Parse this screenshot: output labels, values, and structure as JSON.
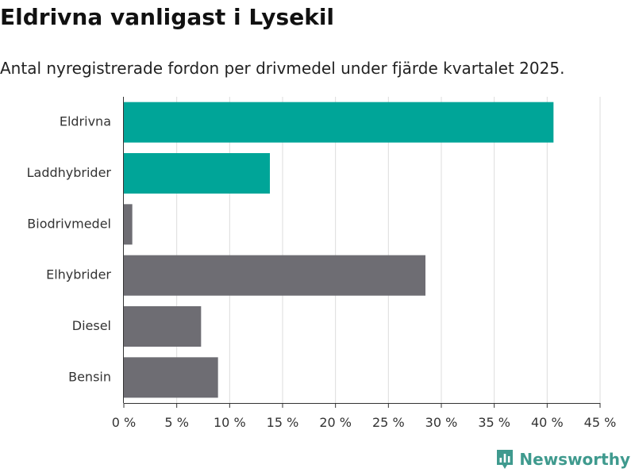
{
  "title": "Eldrivna vanligast i Lysekil",
  "subtitle": "Antal nyregistrerade fordon per drivmedel under fjärde kvartalet 2025.",
  "brand": {
    "name": "Newsworthy",
    "color": "#3f9a8e",
    "icon": "bar-chart-badge-icon"
  },
  "colors": {
    "highlight": "#00a598",
    "default": "#6e6d73",
    "grid": "#dcdcdc",
    "axis": "#333333"
  },
  "chart_data": {
    "type": "bar",
    "orientation": "horizontal",
    "categories": [
      "Eldrivna",
      "Laddhybrider",
      "Biodrivmedel",
      "Elhybrider",
      "Diesel",
      "Bensin"
    ],
    "values": [
      40.6,
      13.8,
      0.8,
      28.5,
      7.3,
      8.9
    ],
    "highlighted": [
      true,
      true,
      false,
      false,
      false,
      false
    ],
    "xlim": [
      0,
      45
    ],
    "xticks": [
      0,
      5,
      10,
      15,
      20,
      25,
      30,
      35,
      40,
      45
    ],
    "tick_labels": [
      "0 %",
      "5 %",
      "10 %",
      "15 %",
      "20 %",
      "25 %",
      "30 %",
      "35 %",
      "40 %",
      "45 %"
    ],
    "xlabel": "",
    "ylabel": "",
    "grid": true
  }
}
